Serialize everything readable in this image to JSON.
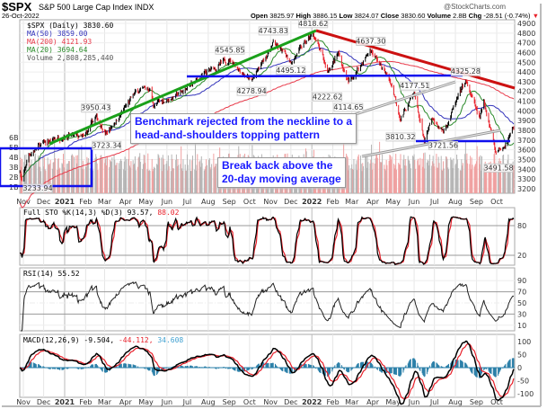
{
  "header": {
    "symbol": "$SPX",
    "name": "S&P 500 Large Cap Index INDX",
    "date": "26-Oct-2022",
    "brand": "@StockCharts.com",
    "open_label": "Open",
    "open": "3825.97",
    "high_label": "High",
    "high": "3886.15",
    "low_label": "Low",
    "low": "3824.07",
    "close_label": "Close",
    "close": "3830.60",
    "volume_label": "Volume",
    "volume": "2.8B",
    "chg_label": "Chg",
    "chg": "-28.51 (-0.74%)",
    "chg_arrow": "▼"
  },
  "legend": {
    "price": "$SPX (Daily) 3830.60",
    "ma50": "MA(50) 3859.00",
    "ma200": "MA(200) 4121.93",
    "ma20": "MA(20) 3694.64",
    "volume": "Volume 2,808,285,440"
  },
  "colors": {
    "up": "#000000",
    "down": "#e8202a",
    "ma50": "#3333bb",
    "ma200": "#e83a4a",
    "ma20": "#2a8a2a",
    "trend_up": "#1aa01a",
    "trend_down": "#cc1111",
    "neckline": "#1010ee",
    "hist": "#2a7fa8",
    "annotation_text": "#1a1aff"
  },
  "annotations": {
    "box1_line1": "Benchmark rejected from the neckline to a",
    "box1_line2": "head-and-shoulders topping pattern",
    "box2_line1": "Break back above the",
    "box2_line2": "20-day moving average"
  },
  "indicators": {
    "sto_legend_black": "Full STO %K(14,3) %D(3) 93.57,",
    "sto_legend_red": "88.02",
    "rsi_legend": "RSI(14) 55.52",
    "macd_legend_black": "MACD(12,26,9) -9.504,",
    "macd_legend_red": "-44.112,",
    "macd_legend_blue": "34.608"
  },
  "chart_data": {
    "type": "candlestick",
    "title": "$SPX S&P 500 Large Cap Index INDX",
    "x_range": [
      "2020-10-27",
      "2022-10-26"
    ],
    "ylim": [
      3200,
      4900
    ],
    "y_ticks": [
      "4900",
      "4800",
      "4700",
      "4600",
      "4500",
      "4400",
      "4300",
      "4200",
      "4100",
      "4000",
      "3900",
      "3800",
      "3700",
      "3600",
      "3500",
      "3400",
      "3300",
      "3200"
    ],
    "volume_ticks": [
      "6B",
      "5B",
      "4B",
      "3B",
      "2B",
      "1B"
    ],
    "x_tick_labels": [
      "Nov",
      "Dec",
      "2021",
      "Feb",
      "Mar",
      "Apr",
      "May",
      "Jun",
      "Jul",
      "Aug",
      "Sep",
      "Oct",
      "Nov",
      "Dec",
      "2022",
      "Feb",
      "Mar",
      "Apr",
      "May",
      "Jun",
      "Jul",
      "Aug",
      "Sep",
      "Oct"
    ],
    "price_path": [
      [
        "2020-10-27",
        3390
      ],
      [
        "2020-10-30",
        3269
      ],
      [
        "2020-11-09",
        3550
      ],
      [
        "2020-11-24",
        3635
      ],
      [
        "2020-12-31",
        3756
      ],
      [
        "2021-01-29",
        3714
      ],
      [
        "2021-02-16",
        3934
      ],
      [
        "2021-03-04",
        3768
      ],
      [
        "2021-04-16",
        4185
      ],
      [
        "2021-05-12",
        4063
      ],
      [
        "2021-05-07",
        4232
      ],
      [
        "2021-06-18",
        4166
      ],
      [
        "2021-07-30",
        4395
      ],
      [
        "2021-09-02",
        4537
      ],
      [
        "2021-10-04",
        4300
      ],
      [
        "2021-11-05",
        4697
      ],
      [
        "2021-12-01",
        4513
      ],
      [
        "2022-01-03",
        4796
      ],
      [
        "2022-01-24",
        4410
      ],
      [
        "2022-02-09",
        4587
      ],
      [
        "2022-02-24",
        4288
      ],
      [
        "2022-03-29",
        4631
      ],
      [
        "2022-04-28",
        4288
      ],
      [
        "2022-05-12",
        3930
      ],
      [
        "2022-06-02",
        4176
      ],
      [
        "2022-06-16",
        3666
      ],
      [
        "2022-06-27",
        3900
      ],
      [
        "2022-07-14",
        3790
      ],
      [
        "2022-08-16",
        4305
      ],
      [
        "2022-09-06",
        3908
      ],
      [
        "2022-09-12",
        4110
      ],
      [
        "2022-09-30",
        3585
      ],
      [
        "2022-10-13",
        3669
      ],
      [
        "2022-10-26",
        3830.6
      ]
    ],
    "price_labels": [
      {
        "date": "2020-10-30",
        "text": "3233.94",
        "kind": "low"
      },
      {
        "date": "2021-02-16",
        "text": "3950.43",
        "kind": "high"
      },
      {
        "date": "2021-03-04",
        "text": "3723.34",
        "kind": "low"
      },
      {
        "date": "2021-09-02",
        "text": "4545.85",
        "kind": "high"
      },
      {
        "date": "2021-10-04",
        "text": "4278.94",
        "kind": "low"
      },
      {
        "date": "2021-11-05",
        "text": "4743.83",
        "kind": "high"
      },
      {
        "date": "2021-12-01",
        "text": "4495.12",
        "kind": "low"
      },
      {
        "date": "2022-01-03",
        "text": "4818.62",
        "kind": "high"
      },
      {
        "date": "2022-01-24",
        "text": "4222.62",
        "kind": "low"
      },
      {
        "date": "2022-02-24",
        "text": "4114.65",
        "kind": "low"
      },
      {
        "date": "2022-03-29",
        "text": "4637.30",
        "kind": "high"
      },
      {
        "date": "2022-06-02",
        "text": "4177.51",
        "kind": "high"
      },
      {
        "date": "2022-05-12",
        "text": "3810.32",
        "kind": "low"
      },
      {
        "date": "2022-07-14",
        "text": "3721.56",
        "kind": "low"
      },
      {
        "date": "2022-08-16",
        "text": "4325.28",
        "kind": "high"
      },
      {
        "date": "2022-10-13",
        "text": "3491.58",
        "kind": "low"
      }
    ],
    "sto_ticks": [
      "80",
      "20"
    ],
    "rsi_ticks": [
      "90",
      "70",
      "50",
      "30",
      "10"
    ],
    "macd_ticks": [
      "100",
      "50",
      "0",
      "-50",
      "-100"
    ]
  }
}
